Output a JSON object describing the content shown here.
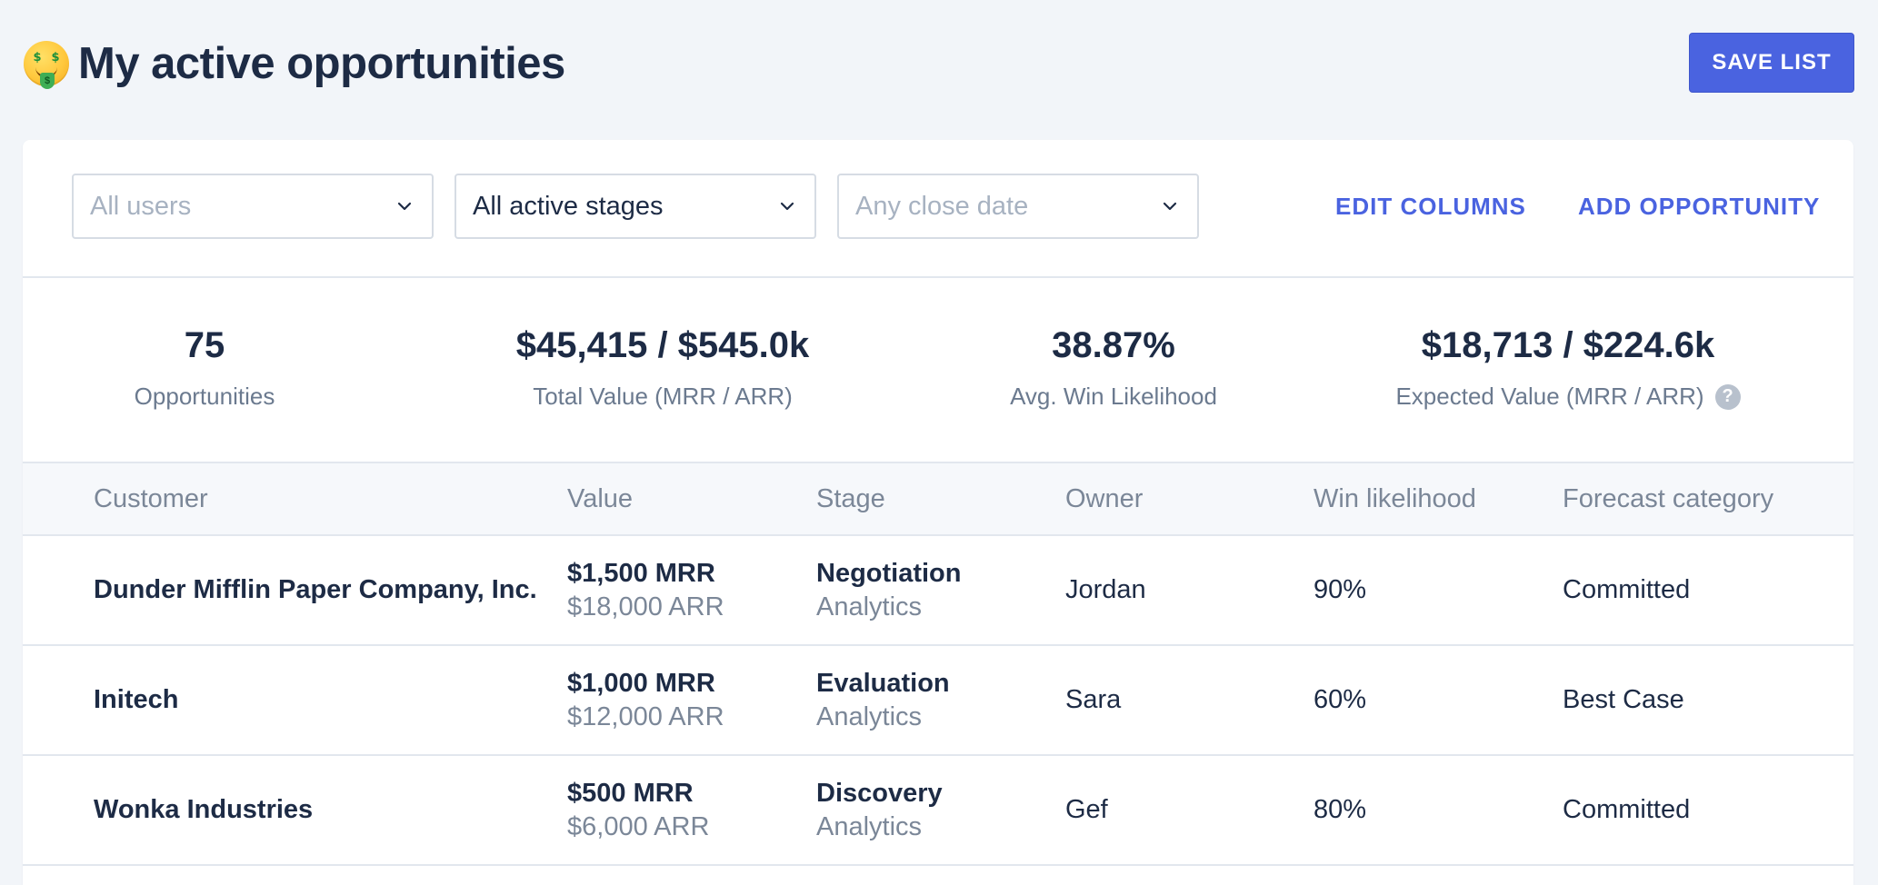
{
  "header": {
    "emoji_icon": "money-mouth-face",
    "title": "My active opportunities",
    "save_label": "SAVE LIST"
  },
  "filters": {
    "users": {
      "placeholder": "All users",
      "value": ""
    },
    "stages": {
      "placeholder": "",
      "value": "All active stages"
    },
    "close_date": {
      "placeholder": "Any close date",
      "value": ""
    },
    "edit_columns_label": "EDIT COLUMNS",
    "add_opportunity_label": "ADD OPPORTUNITY"
  },
  "stats": [
    {
      "value": "75",
      "label": "Opportunities"
    },
    {
      "value": "$45,415 / $545.0k",
      "label": "Total Value (MRR / ARR)"
    },
    {
      "value": "38.87%",
      "label": "Avg. Win Likelihood"
    },
    {
      "value": "$18,713 / $224.6k",
      "label": "Expected Value (MRR / ARR)",
      "help": "?"
    }
  ],
  "table": {
    "columns": [
      "Customer",
      "Value",
      "Stage",
      "Owner",
      "Win likelihood",
      "Forecast category"
    ],
    "rows": [
      {
        "customer": "Dunder Mifflin Paper Company, Inc.",
        "mrr": "$1,500 MRR",
        "arr": "$18,000 ARR",
        "stage": "Negotiation",
        "pipeline": "Analytics",
        "owner": "Jordan",
        "win": "90%",
        "forecast": "Committed"
      },
      {
        "customer": "Initech",
        "mrr": "$1,000 MRR",
        "arr": "$12,000 ARR",
        "stage": "Evaluation",
        "pipeline": "Analytics",
        "owner": "Sara",
        "win": "60%",
        "forecast": "Best Case"
      },
      {
        "customer": "Wonka Industries",
        "mrr": "$500 MRR",
        "arr": "$6,000 ARR",
        "stage": "Discovery",
        "pipeline": "Analytics",
        "owner": "Gef",
        "win": "80%",
        "forecast": "Committed"
      }
    ]
  },
  "colors": {
    "accent": "#4a63e0",
    "text": "#1d2b45",
    "muted": "#7b8798",
    "page_bg": "#f2f5f9"
  }
}
